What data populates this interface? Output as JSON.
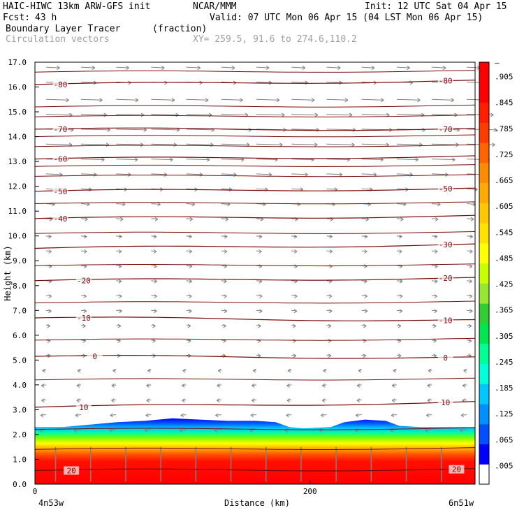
{
  "header": {
    "model": "HAIC-HIWC 13km ARW-GFS init",
    "org": "NCAR/MMM",
    "init": "Init: 12 UTC Sat 04 Apr 15",
    "fcst_label": "Fcst:",
    "fcst_value": "43 h",
    "valid": "Valid: 07 UTC Mon 06 Apr 15 (04 LST Mon 06 Apr 15)",
    "field": "Boundary Layer Tracer",
    "field_units": "(fraction)",
    "vectors": "Circulation vectors",
    "xy": "XY= 259.5, 91.6 to 274.6,110.2"
  },
  "colors": {
    "contour": "#7a0a0a",
    "vector": "#808080",
    "colorbar": [
      "#ffffff",
      "#0000ff",
      "#0050ff",
      "#0090ff",
      "#00c8ff",
      "#00ffdc",
      "#00ff96",
      "#00e650",
      "#32cd32",
      "#96e632",
      "#c8ff00",
      "#ffff00",
      "#ffe100",
      "#ffc800",
      "#ffaa00",
      "#ff8c00",
      "#ff6400",
      "#ff3c00",
      "#ff1e00",
      "#ff0000",
      "#ff0000"
    ]
  },
  "chart_data": {
    "type": "cross-section",
    "xlabel": "Distance (km)",
    "ylabel": "Height (km)",
    "xlim": [
      0,
      320
    ],
    "ylim": [
      0,
      17
    ],
    "x_ticks": [
      {
        "value": 0,
        "label": "0"
      },
      {
        "value": 200,
        "label": "200"
      }
    ],
    "x_end_labels": [
      "4n53w",
      "6n51w"
    ],
    "y_ticks": [
      "0.0",
      "1.0",
      "2.0",
      "3.0",
      "4.0",
      "5.0",
      "6.0",
      "7.0",
      "8.0",
      "9.0",
      "10.0",
      "11.0",
      "12.0",
      "13.0",
      "14.0",
      "15.0",
      "16.0",
      "17.0"
    ],
    "colorbar_labels": [
      ".005",
      ".065",
      ".125",
      ".185",
      ".245",
      ".305",
      ".365",
      ".425",
      ".485",
      ".545",
      ".605",
      ".665",
      ".725",
      ".785",
      ".845",
      ".905",
      "–"
    ],
    "contours": [
      {
        "level": 20,
        "label": "20",
        "left_km": 0.55,
        "right_km": 0.6,
        "label_left": true,
        "label_right": true
      },
      {
        "level": 10,
        "label": "10",
        "left_km": 3.1,
        "right_km": 3.3,
        "label_left": true,
        "label_right": true
      },
      {
        "level": 0,
        "label": "0",
        "left_km": 5.15,
        "right_km": 5.1,
        "label_left": true,
        "label_right": true
      },
      {
        "level": -10,
        "label": "-10",
        "left_km": 6.7,
        "right_km": 6.6,
        "label_left": true,
        "label_right": true
      },
      {
        "level": -20,
        "label": "-20",
        "left_km": 8.2,
        "right_km": 8.3,
        "label_left": true,
        "label_right": true
      },
      {
        "level": -30,
        "label": "-30",
        "left_km": 9.5,
        "right_km": 9.65,
        "label_left": false,
        "label_right": true
      },
      {
        "level": -40,
        "label": "-40",
        "left_km": 10.7,
        "right_km": 10.8,
        "label_left": true,
        "label_right": false
      },
      {
        "level": -50,
        "label": "-50",
        "left_km": 11.8,
        "right_km": 11.9,
        "label_left": true,
        "label_right": true
      },
      {
        "level": -60,
        "label": "-60",
        "left_km": 13.1,
        "right_km": 13.2,
        "label_left": true,
        "label_right": false
      },
      {
        "level": -70,
        "label": "-70",
        "left_km": 14.3,
        "right_km": 14.3,
        "label_left": true,
        "label_right": true
      },
      {
        "level": -80,
        "label": "-80",
        "left_km": 16.1,
        "right_km": 16.25,
        "label_left": true,
        "label_right": true
      }
    ],
    "unlabeled_contours_km": [
      1.4,
      2.2,
      4.2,
      5.8,
      7.3,
      8.8,
      10.1,
      11.3,
      12.4,
      12.8,
      13.6,
      14.0,
      14.8,
      15.2,
      16.6
    ],
    "bl_top_km": [
      [
        0,
        2.3
      ],
      [
        20,
        2.3
      ],
      [
        40,
        2.4
      ],
      [
        60,
        2.5
      ],
      [
        80,
        2.55
      ],
      [
        100,
        2.65
      ],
      [
        120,
        2.6
      ],
      [
        140,
        2.55
      ],
      [
        160,
        2.55
      ],
      [
        175,
        2.5
      ],
      [
        185,
        2.3
      ],
      [
        195,
        2.25
      ],
      [
        215,
        2.3
      ],
      [
        225,
        2.5
      ],
      [
        240,
        2.6
      ],
      [
        255,
        2.55
      ],
      [
        265,
        2.35
      ],
      [
        280,
        2.3
      ],
      [
        320,
        2.3
      ]
    ],
    "vector_rows_km": [
      {
        "z": 16.8,
        "u": 0.6
      },
      {
        "z": 16.2,
        "u": 0.7
      },
      {
        "z": 15.5,
        "u": 1.0
      },
      {
        "z": 14.9,
        "u": 1.2
      },
      {
        "z": 14.3,
        "u": 1.3
      },
      {
        "z": 13.7,
        "u": 1.2
      },
      {
        "z": 13.1,
        "u": 1.0
      },
      {
        "z": 12.5,
        "u": 0.7
      },
      {
        "z": 11.9,
        "u": 0.5
      },
      {
        "z": 11.3,
        "u": 0.4
      },
      {
        "z": 10.7,
        "u": 0.3
      },
      {
        "z": 10.0,
        "u": 0.25
      },
      {
        "z": 9.4,
        "u": 0.25
      },
      {
        "z": 8.8,
        "u": 0.25
      },
      {
        "z": 8.2,
        "u": 0.25
      },
      {
        "z": 7.6,
        "u": 0.25
      },
      {
        "z": 7.0,
        "u": 0.25
      },
      {
        "z": 6.4,
        "u": 0.2
      },
      {
        "z": 5.8,
        "u": 0.2
      },
      {
        "z": 5.2,
        "u": 0.2
      },
      {
        "z": 4.6,
        "u": -0.15
      },
      {
        "z": 4.0,
        "u": -0.2
      },
      {
        "z": 3.4,
        "u": -0.2
      },
      {
        "z": 2.8,
        "u": -0.25
      },
      {
        "z": 2.2,
        "u": -0.3
      }
    ]
  }
}
